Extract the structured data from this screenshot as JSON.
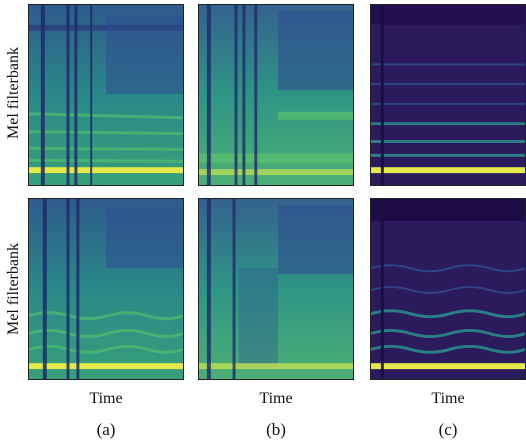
{
  "figure": {
    "ylabel_row1": "Mel filterbank",
    "ylabel_row2": "Mel filterbank",
    "xlabel": "Time",
    "captions": [
      "(a)",
      "(b)",
      "(c)"
    ]
  },
  "palette": {
    "dark_bg": "#2b1a5c",
    "mid_blue": "#2f4f8f",
    "teal": "#2a8a8a",
    "green": "#4fbf6f",
    "yellow": "#e6e84a"
  }
}
